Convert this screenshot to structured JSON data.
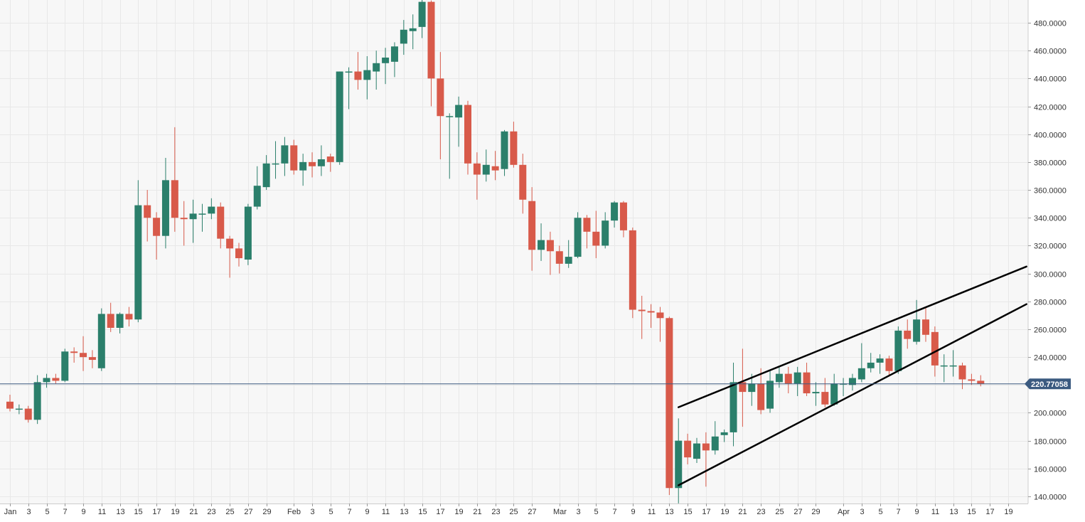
{
  "chart_data": {
    "type": "candlestick",
    "colors": {
      "up": "#2b7f6b",
      "down": "#d85a4a",
      "grid": "#e8e8e8",
      "background": "#f7f7f7",
      "last_price": "#3b5a80",
      "trendline": "#000000"
    },
    "ylim": [
      135,
      495
    ],
    "y_ticks": [
      140,
      160,
      180,
      200,
      220,
      240,
      260,
      280,
      300,
      320,
      340,
      360,
      380,
      400,
      420,
      440,
      460,
      480
    ],
    "y_tick_labels": [
      "140.0000",
      "160.0000",
      "180.0000",
      "200.0000",
      "220.0000",
      "240.0000",
      "260.0000",
      "280.0000",
      "300.0000",
      "320.0000",
      "340.0000",
      "360.0000",
      "380.0000",
      "400.0000",
      "420.0000",
      "440.0000",
      "460.0000",
      "480.0000"
    ],
    "x_range": [
      "2020-01-01",
      "2020-04-21"
    ],
    "x_ticks": [
      {
        "date": "2020-01-01",
        "label": "Jan"
      },
      {
        "date": "2020-01-03",
        "label": "3"
      },
      {
        "date": "2020-01-05",
        "label": "5"
      },
      {
        "date": "2020-01-07",
        "label": "7"
      },
      {
        "date": "2020-01-09",
        "label": "9"
      },
      {
        "date": "2020-01-11",
        "label": "11"
      },
      {
        "date": "2020-01-13",
        "label": "13"
      },
      {
        "date": "2020-01-15",
        "label": "15"
      },
      {
        "date": "2020-01-17",
        "label": "17"
      },
      {
        "date": "2020-01-19",
        "label": "19"
      },
      {
        "date": "2020-01-21",
        "label": "21"
      },
      {
        "date": "2020-01-23",
        "label": "23"
      },
      {
        "date": "2020-01-25",
        "label": "25"
      },
      {
        "date": "2020-01-27",
        "label": "27"
      },
      {
        "date": "2020-01-29",
        "label": "29"
      },
      {
        "date": "2020-02-01",
        "label": "Feb"
      },
      {
        "date": "2020-02-03",
        "label": "3"
      },
      {
        "date": "2020-02-05",
        "label": "5"
      },
      {
        "date": "2020-02-07",
        "label": "7"
      },
      {
        "date": "2020-02-09",
        "label": "9"
      },
      {
        "date": "2020-02-11",
        "label": "11"
      },
      {
        "date": "2020-02-13",
        "label": "13"
      },
      {
        "date": "2020-02-15",
        "label": "15"
      },
      {
        "date": "2020-02-17",
        "label": "17"
      },
      {
        "date": "2020-02-19",
        "label": "19"
      },
      {
        "date": "2020-02-21",
        "label": "21"
      },
      {
        "date": "2020-02-23",
        "label": "23"
      },
      {
        "date": "2020-02-25",
        "label": "25"
      },
      {
        "date": "2020-02-27",
        "label": "27"
      },
      {
        "date": "2020-03-01",
        "label": "Mar"
      },
      {
        "date": "2020-03-03",
        "label": "3"
      },
      {
        "date": "2020-03-05",
        "label": "5"
      },
      {
        "date": "2020-03-07",
        "label": "7"
      },
      {
        "date": "2020-03-09",
        "label": "9"
      },
      {
        "date": "2020-03-11",
        "label": "11"
      },
      {
        "date": "2020-03-13",
        "label": "13"
      },
      {
        "date": "2020-03-15",
        "label": "15"
      },
      {
        "date": "2020-03-17",
        "label": "17"
      },
      {
        "date": "2020-03-19",
        "label": "19"
      },
      {
        "date": "2020-03-21",
        "label": "21"
      },
      {
        "date": "2020-03-23",
        "label": "23"
      },
      {
        "date": "2020-03-25",
        "label": "25"
      },
      {
        "date": "2020-03-27",
        "label": "27"
      },
      {
        "date": "2020-03-29",
        "label": "29"
      },
      {
        "date": "2020-04-01",
        "label": "Apr"
      },
      {
        "date": "2020-04-03",
        "label": "3"
      },
      {
        "date": "2020-04-05",
        "label": "5"
      },
      {
        "date": "2020-04-07",
        "label": "7"
      },
      {
        "date": "2020-04-09",
        "label": "9"
      },
      {
        "date": "2020-04-11",
        "label": "11"
      },
      {
        "date": "2020-04-13",
        "label": "13"
      },
      {
        "date": "2020-04-15",
        "label": "15"
      },
      {
        "date": "2020-04-17",
        "label": "17"
      },
      {
        "date": "2020-04-19",
        "label": "19"
      }
    ],
    "last_price": 220.77058,
    "last_price_label": "220.77058",
    "candles": [
      {
        "date": "2020-01-01",
        "open": 208,
        "high": 213,
        "low": 201,
        "close": 203
      },
      {
        "date": "2020-01-02",
        "open": 203,
        "high": 206,
        "low": 199,
        "close": 203
      },
      {
        "date": "2020-01-03",
        "open": 203,
        "high": 205,
        "low": 193,
        "close": 195
      },
      {
        "date": "2020-01-04",
        "open": 195,
        "high": 227,
        "low": 192,
        "close": 222
      },
      {
        "date": "2020-01-05",
        "open": 222,
        "high": 228,
        "low": 218,
        "close": 225
      },
      {
        "date": "2020-01-06",
        "open": 225,
        "high": 228,
        "low": 221,
        "close": 223
      },
      {
        "date": "2020-01-07",
        "open": 223,
        "high": 246,
        "low": 222,
        "close": 244
      },
      {
        "date": "2020-01-08",
        "open": 244,
        "high": 247,
        "low": 236,
        "close": 243
      },
      {
        "date": "2020-01-09",
        "open": 243,
        "high": 255,
        "low": 230,
        "close": 240
      },
      {
        "date": "2020-01-10",
        "open": 240,
        "high": 245,
        "low": 232,
        "close": 238
      },
      {
        "date": "2020-01-11",
        "open": 232,
        "high": 275,
        "low": 230,
        "close": 271
      },
      {
        "date": "2020-01-12",
        "open": 271,
        "high": 279,
        "low": 258,
        "close": 261
      },
      {
        "date": "2020-01-13",
        "open": 261,
        "high": 272,
        "low": 257,
        "close": 271
      },
      {
        "date": "2020-01-14",
        "open": 271,
        "high": 276,
        "low": 262,
        "close": 267
      },
      {
        "date": "2020-01-15",
        "open": 267,
        "high": 367,
        "low": 265,
        "close": 349
      },
      {
        "date": "2020-01-16",
        "open": 349,
        "high": 360,
        "low": 323,
        "close": 340
      },
      {
        "date": "2020-01-17",
        "open": 340,
        "high": 344,
        "low": 310,
        "close": 327
      },
      {
        "date": "2020-01-18",
        "open": 327,
        "high": 383,
        "low": 318,
        "close": 367
      },
      {
        "date": "2020-01-19",
        "open": 367,
        "high": 405,
        "low": 330,
        "close": 340
      },
      {
        "date": "2020-01-20",
        "open": 340,
        "high": 352,
        "low": 320,
        "close": 339
      },
      {
        "date": "2020-01-21",
        "open": 339,
        "high": 353,
        "low": 322,
        "close": 343
      },
      {
        "date": "2020-01-22",
        "open": 343,
        "high": 350,
        "low": 330,
        "close": 343
      },
      {
        "date": "2020-01-23",
        "open": 343,
        "high": 354,
        "low": 339,
        "close": 348
      },
      {
        "date": "2020-01-24",
        "open": 348,
        "high": 351,
        "low": 318,
        "close": 325
      },
      {
        "date": "2020-01-25",
        "open": 325,
        "high": 327,
        "low": 297,
        "close": 318
      },
      {
        "date": "2020-01-26",
        "open": 318,
        "high": 322,
        "low": 305,
        "close": 311
      },
      {
        "date": "2020-01-27",
        "open": 310,
        "high": 350,
        "low": 306,
        "close": 348
      },
      {
        "date": "2020-01-28",
        "open": 348,
        "high": 377,
        "low": 346,
        "close": 363
      },
      {
        "date": "2020-01-29",
        "open": 362,
        "high": 385,
        "low": 360,
        "close": 379
      },
      {
        "date": "2020-01-30",
        "open": 379,
        "high": 395,
        "low": 368,
        "close": 379
      },
      {
        "date": "2020-01-31",
        "open": 379,
        "high": 398,
        "low": 370,
        "close": 392
      },
      {
        "date": "2020-02-01",
        "open": 392,
        "high": 396,
        "low": 371,
        "close": 374
      },
      {
        "date": "2020-02-02",
        "open": 374,
        "high": 386,
        "low": 363,
        "close": 380
      },
      {
        "date": "2020-02-03",
        "open": 380,
        "high": 387,
        "low": 369,
        "close": 377
      },
      {
        "date": "2020-02-04",
        "open": 377,
        "high": 392,
        "low": 370,
        "close": 382
      },
      {
        "date": "2020-02-05",
        "open": 384,
        "high": 386,
        "low": 373,
        "close": 380
      },
      {
        "date": "2020-02-06",
        "open": 380,
        "high": 445,
        "low": 378,
        "close": 445
      },
      {
        "date": "2020-02-07",
        "open": 445,
        "high": 448,
        "low": 418,
        "close": 445
      },
      {
        "date": "2020-02-08",
        "open": 445,
        "high": 459,
        "low": 432,
        "close": 439
      },
      {
        "date": "2020-02-09",
        "open": 439,
        "high": 456,
        "low": 425,
        "close": 446
      },
      {
        "date": "2020-02-10",
        "open": 445,
        "high": 460,
        "low": 432,
        "close": 451
      },
      {
        "date": "2020-02-11",
        "open": 451,
        "high": 462,
        "low": 436,
        "close": 455
      },
      {
        "date": "2020-02-12",
        "open": 452,
        "high": 466,
        "low": 441,
        "close": 463
      },
      {
        "date": "2020-02-13",
        "open": 465,
        "high": 482,
        "low": 457,
        "close": 475
      },
      {
        "date": "2020-02-14",
        "open": 474,
        "high": 486,
        "low": 461,
        "close": 476
      },
      {
        "date": "2020-02-15",
        "open": 477,
        "high": 498,
        "low": 469,
        "close": 495
      },
      {
        "date": "2020-02-16",
        "open": 495,
        "high": 496,
        "low": 420,
        "close": 440
      },
      {
        "date": "2020-02-17",
        "open": 440,
        "high": 459,
        "low": 382,
        "close": 413
      },
      {
        "date": "2020-02-18",
        "open": 413,
        "high": 415,
        "low": 368,
        "close": 413
      },
      {
        "date": "2020-02-19",
        "open": 412,
        "high": 427,
        "low": 391,
        "close": 421
      },
      {
        "date": "2020-02-20",
        "open": 421,
        "high": 424,
        "low": 371,
        "close": 379
      },
      {
        "date": "2020-02-21",
        "open": 379,
        "high": 387,
        "low": 353,
        "close": 371
      },
      {
        "date": "2020-02-22",
        "open": 371,
        "high": 389,
        "low": 366,
        "close": 378
      },
      {
        "date": "2020-02-23",
        "open": 377,
        "high": 388,
        "low": 367,
        "close": 374
      },
      {
        "date": "2020-02-24",
        "open": 375,
        "high": 403,
        "low": 370,
        "close": 402
      },
      {
        "date": "2020-02-25",
        "open": 402,
        "high": 409,
        "low": 376,
        "close": 378
      },
      {
        "date": "2020-02-26",
        "open": 378,
        "high": 386,
        "low": 343,
        "close": 353
      },
      {
        "date": "2020-02-27",
        "open": 352,
        "high": 362,
        "low": 302,
        "close": 317
      },
      {
        "date": "2020-02-28",
        "open": 317,
        "high": 336,
        "low": 309,
        "close": 324
      },
      {
        "date": "2020-02-29",
        "open": 324,
        "high": 330,
        "low": 299,
        "close": 316
      },
      {
        "date": "2020-03-01",
        "open": 316,
        "high": 320,
        "low": 300,
        "close": 307
      },
      {
        "date": "2020-03-02",
        "open": 307,
        "high": 324,
        "low": 304,
        "close": 312
      },
      {
        "date": "2020-03-03",
        "open": 312,
        "high": 344,
        "low": 311,
        "close": 340
      },
      {
        "date": "2020-03-04",
        "open": 340,
        "high": 342,
        "low": 318,
        "close": 330
      },
      {
        "date": "2020-03-05",
        "open": 330,
        "high": 345,
        "low": 311,
        "close": 320
      },
      {
        "date": "2020-03-06",
        "open": 320,
        "high": 344,
        "low": 318,
        "close": 338
      },
      {
        "date": "2020-03-07",
        "open": 338,
        "high": 352,
        "low": 333,
        "close": 351
      },
      {
        "date": "2020-03-08",
        "open": 351,
        "high": 352,
        "low": 326,
        "close": 331
      },
      {
        "date": "2020-03-09",
        "open": 331,
        "high": 333,
        "low": 268,
        "close": 274
      },
      {
        "date": "2020-03-10",
        "open": 274,
        "high": 284,
        "low": 253,
        "close": 273
      },
      {
        "date": "2020-03-11",
        "open": 273,
        "high": 278,
        "low": 261,
        "close": 272
      },
      {
        "date": "2020-03-12",
        "open": 272,
        "high": 276,
        "low": 251,
        "close": 268
      },
      {
        "date": "2020-03-13",
        "open": 268,
        "high": 269,
        "low": 141,
        "close": 146
      },
      {
        "date": "2020-03-14",
        "open": 146,
        "high": 196,
        "low": 135,
        "close": 180
      },
      {
        "date": "2020-03-15",
        "open": 180,
        "high": 185,
        "low": 163,
        "close": 168
      },
      {
        "date": "2020-03-16",
        "open": 167,
        "high": 182,
        "low": 164,
        "close": 178
      },
      {
        "date": "2020-03-17",
        "open": 178,
        "high": 186,
        "low": 147,
        "close": 173
      },
      {
        "date": "2020-03-18",
        "open": 173,
        "high": 194,
        "low": 170,
        "close": 183
      },
      {
        "date": "2020-03-19",
        "open": 184,
        "high": 188,
        "low": 179,
        "close": 186
      },
      {
        "date": "2020-03-20",
        "open": 186,
        "high": 236,
        "low": 176,
        "close": 222
      },
      {
        "date": "2020-03-21",
        "open": 222,
        "high": 246,
        "low": 190,
        "close": 215
      },
      {
        "date": "2020-03-22",
        "open": 215,
        "high": 228,
        "low": 205,
        "close": 221
      },
      {
        "date": "2020-03-23",
        "open": 221,
        "high": 232,
        "low": 199,
        "close": 202
      },
      {
        "date": "2020-03-24",
        "open": 203,
        "high": 230,
        "low": 200,
        "close": 223
      },
      {
        "date": "2020-03-25",
        "open": 222,
        "high": 233,
        "low": 218,
        "close": 228
      },
      {
        "date": "2020-03-26",
        "open": 228,
        "high": 233,
        "low": 214,
        "close": 221
      },
      {
        "date": "2020-03-27",
        "open": 221,
        "high": 233,
        "low": 212,
        "close": 229
      },
      {
        "date": "2020-03-28",
        "open": 229,
        "high": 236,
        "low": 212,
        "close": 214
      },
      {
        "date": "2020-03-29",
        "open": 214,
        "high": 222,
        "low": 205,
        "close": 215
      },
      {
        "date": "2020-03-30",
        "open": 215,
        "high": 225,
        "low": 204,
        "close": 206
      },
      {
        "date": "2020-03-31",
        "open": 206,
        "high": 228,
        "low": 205,
        "close": 221
      },
      {
        "date": "2020-04-01",
        "open": 221,
        "high": 225,
        "low": 212,
        "close": 221
      },
      {
        "date": "2020-04-02",
        "open": 220,
        "high": 228,
        "low": 216,
        "close": 225
      },
      {
        "date": "2020-04-03",
        "open": 224,
        "high": 250,
        "low": 222,
        "close": 232
      },
      {
        "date": "2020-04-04",
        "open": 232,
        "high": 243,
        "low": 229,
        "close": 236
      },
      {
        "date": "2020-04-05",
        "open": 236,
        "high": 242,
        "low": 228,
        "close": 239
      },
      {
        "date": "2020-04-06",
        "open": 239,
        "high": 241,
        "low": 226,
        "close": 230
      },
      {
        "date": "2020-04-07",
        "open": 230,
        "high": 262,
        "low": 228,
        "close": 259
      },
      {
        "date": "2020-04-08",
        "open": 259,
        "high": 267,
        "low": 246,
        "close": 253
      },
      {
        "date": "2020-04-09",
        "open": 251,
        "high": 281,
        "low": 249,
        "close": 267
      },
      {
        "date": "2020-04-10",
        "open": 267,
        "high": 276,
        "low": 251,
        "close": 256
      },
      {
        "date": "2020-04-11",
        "open": 258,
        "high": 262,
        "low": 226,
        "close": 234
      },
      {
        "date": "2020-04-12",
        "open": 234,
        "high": 242,
        "low": 222,
        "close": 234
      },
      {
        "date": "2020-04-13",
        "open": 234,
        "high": 245,
        "low": 226,
        "close": 234
      },
      {
        "date": "2020-04-14",
        "open": 234,
        "high": 236,
        "low": 217,
        "close": 224
      },
      {
        "date": "2020-04-15",
        "open": 224,
        "high": 228,
        "low": 220,
        "close": 223
      },
      {
        "date": "2020-04-16",
        "open": 223,
        "high": 227,
        "low": 219,
        "close": 221
      }
    ],
    "trendlines": [
      {
        "name": "upper-channel",
        "start": {
          "date": "2020-03-14",
          "value": 204
        },
        "end": {
          "date": "2020-04-21",
          "value": 305
        }
      },
      {
        "name": "lower-channel",
        "start": {
          "date": "2020-03-14",
          "value": 148
        },
        "end": {
          "date": "2020-04-21",
          "value": 278
        }
      }
    ]
  }
}
